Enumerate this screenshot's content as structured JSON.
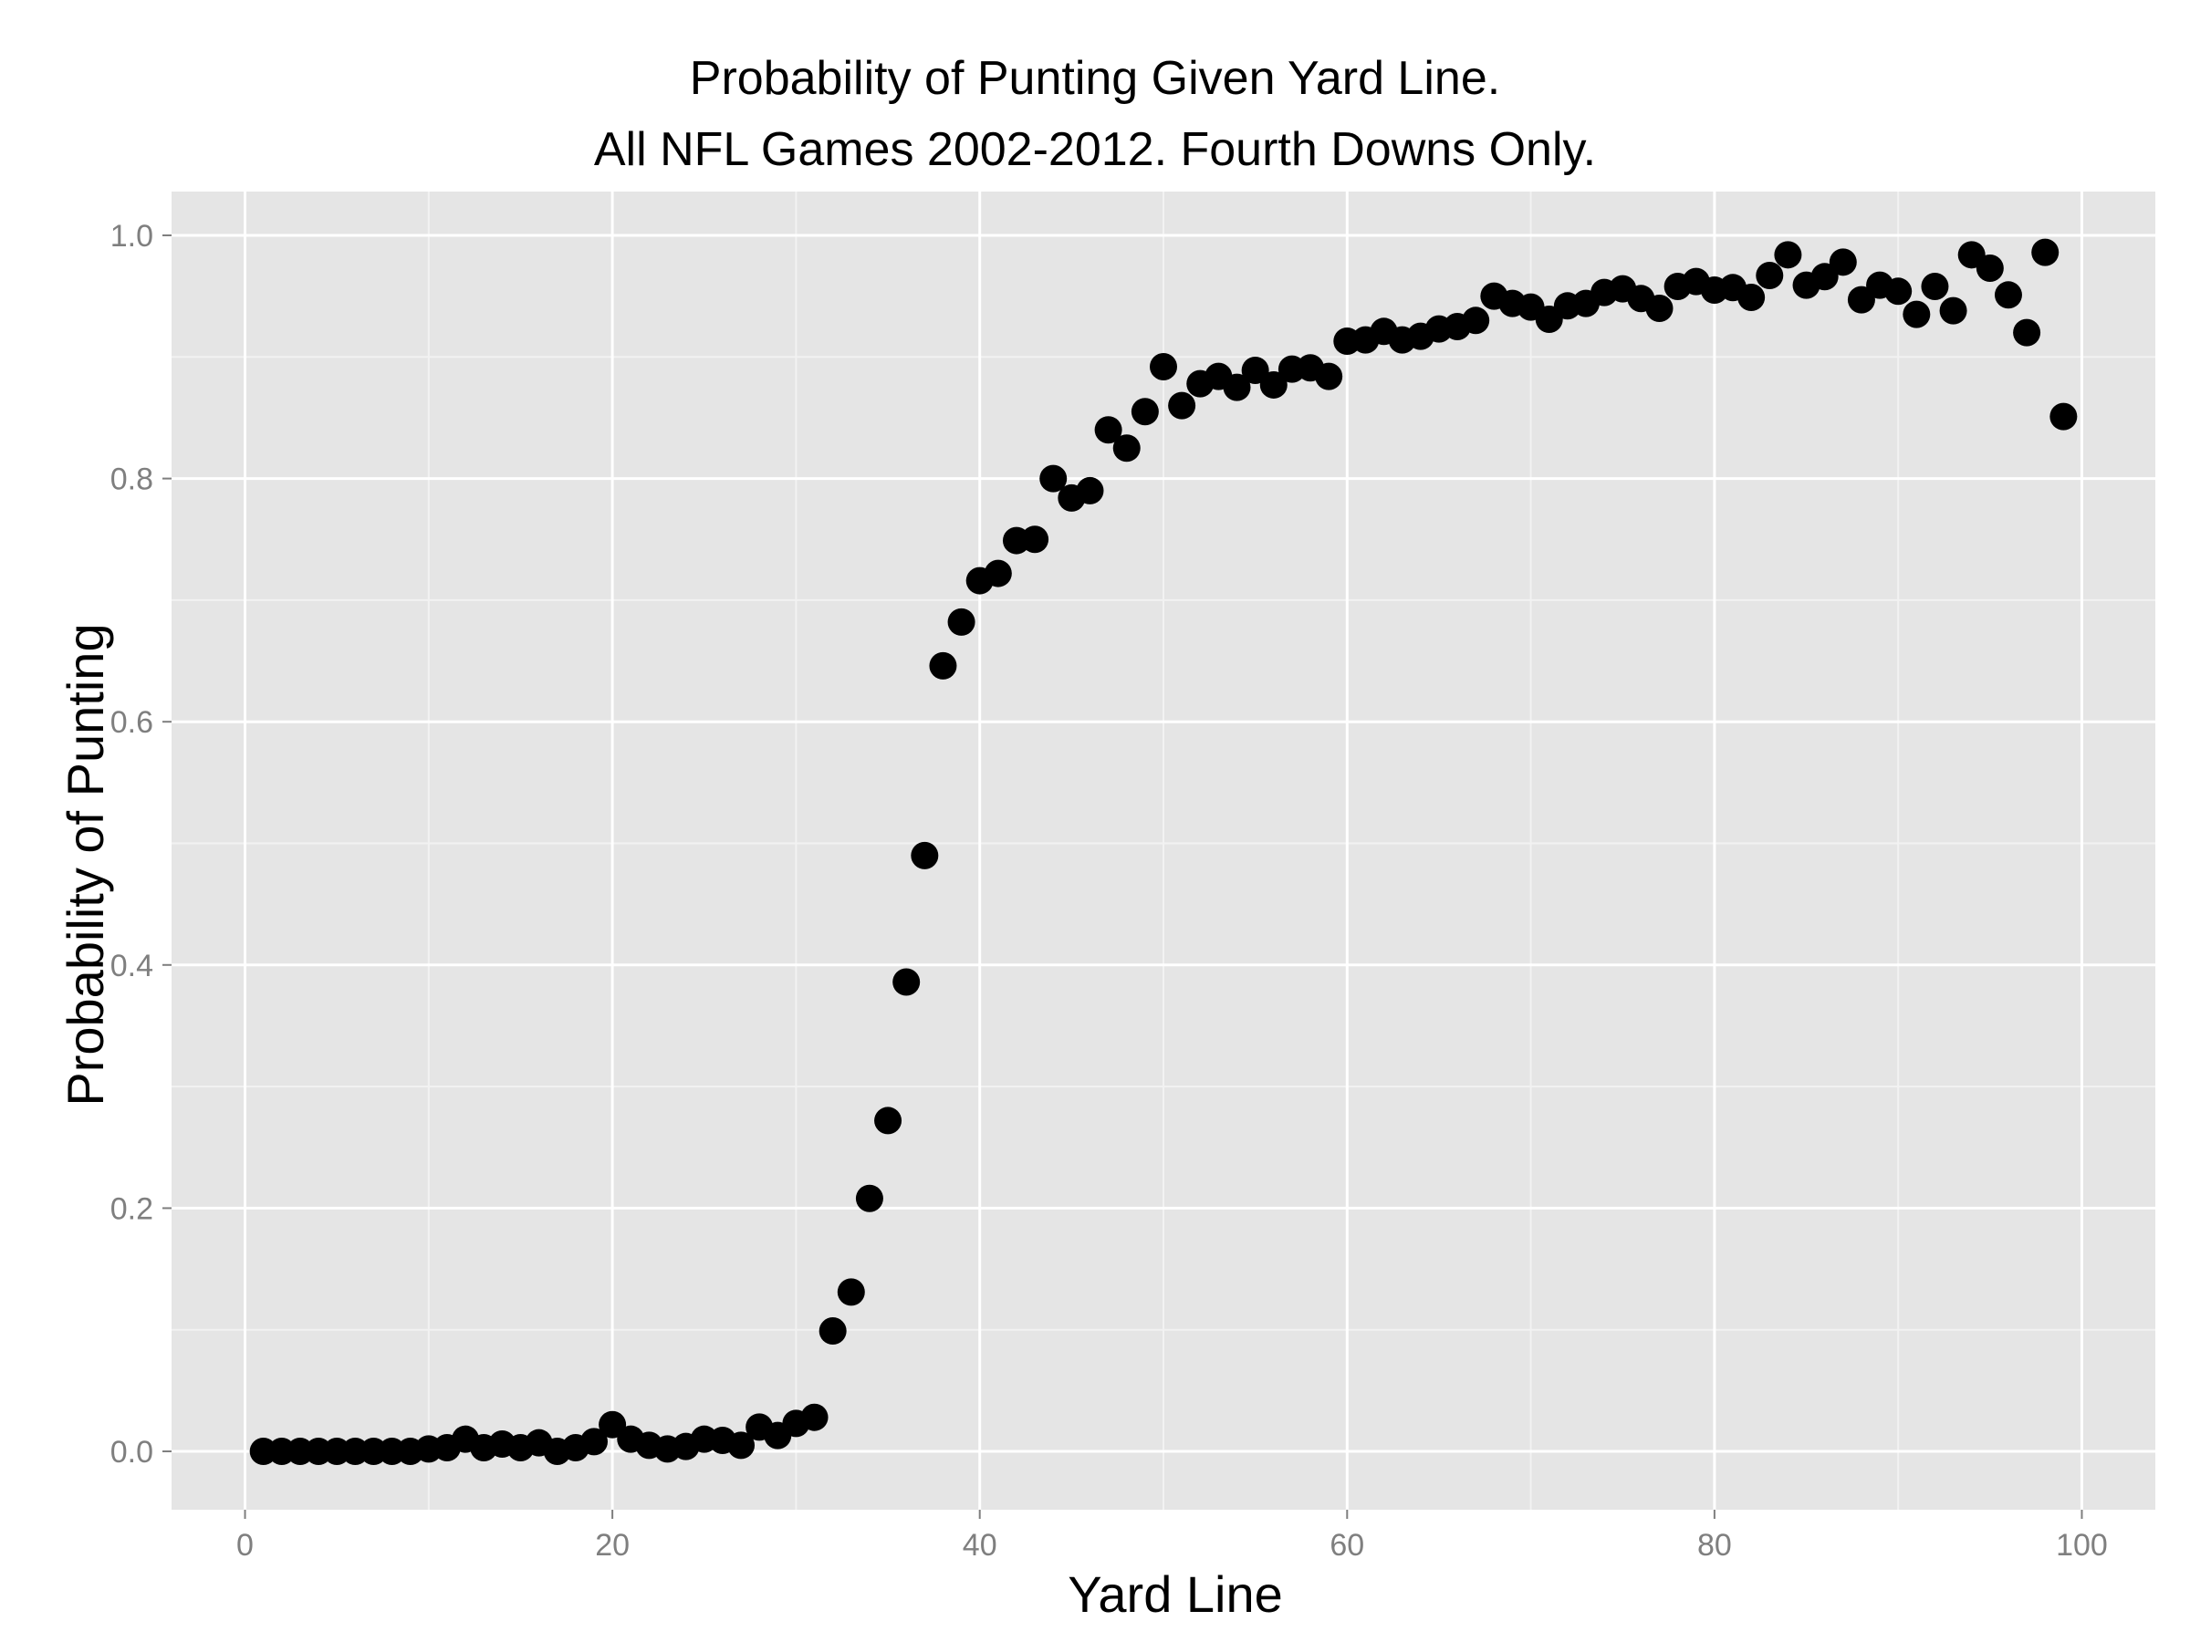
{
  "chart_data": {
    "type": "scatter",
    "title": "Probability of Punting Given Yard Line.",
    "subtitle": "All NFL Games 2002-2012. Fourth Downs Only.",
    "xlabel": "Yard Line",
    "ylabel": "Probability of Punting",
    "xlim": [
      -4,
      104
    ],
    "ylim": [
      -0.048,
      1.036
    ],
    "x_ticks": [
      0,
      20,
      40,
      60,
      80,
      100
    ],
    "x_tick_labels": [
      "0",
      "20",
      "40",
      "60",
      "80",
      "100"
    ],
    "y_ticks": [
      0.0,
      0.2,
      0.4,
      0.6,
      0.8,
      1.0
    ],
    "y_tick_labels": [
      "0.0",
      "0.2",
      "0.4",
      "0.6",
      "0.8",
      "1.0"
    ],
    "grid": true,
    "legend": "none",
    "colors": {
      "panel": "#E5E5E5",
      "grid_major": "#FFFFFF",
      "grid_minor": "#F2F2F2",
      "point": "#000000",
      "tick_label": "#7F7F7F"
    },
    "x": [
      1,
      2,
      3,
      4,
      5,
      6,
      7,
      8,
      9,
      10,
      11,
      12,
      13,
      14,
      15,
      16,
      17,
      18,
      19,
      20,
      21,
      22,
      23,
      24,
      25,
      26,
      27,
      28,
      29,
      30,
      31,
      32,
      33,
      34,
      35,
      36,
      37,
      38,
      39,
      40,
      41,
      42,
      43,
      44,
      45,
      46,
      47,
      48,
      49,
      50,
      51,
      52,
      53,
      54,
      55,
      56,
      57,
      58,
      59,
      60,
      61,
      62,
      63,
      64,
      65,
      66,
      67,
      68,
      69,
      70,
      71,
      72,
      73,
      74,
      75,
      76,
      77,
      78,
      79,
      80,
      81,
      82,
      83,
      84,
      85,
      86,
      87,
      88,
      89,
      90,
      91,
      92,
      93,
      94,
      95,
      96,
      97,
      98,
      99
    ],
    "y": [
      0.0,
      0.0,
      0.0,
      0.0,
      0.0,
      0.0,
      0.0,
      0.0,
      0.0,
      0.002,
      0.003,
      0.01,
      0.003,
      0.006,
      0.003,
      0.007,
      0.0,
      0.003,
      0.008,
      0.022,
      0.01,
      0.005,
      0.002,
      0.004,
      0.01,
      0.009,
      0.005,
      0.02,
      0.013,
      0.023,
      0.028,
      0.099,
      0.131,
      0.208,
      0.272,
      0.386,
      0.49,
      0.646,
      0.682,
      0.716,
      0.722,
      0.749,
      0.75,
      0.8,
      0.784,
      0.79,
      0.84,
      0.825,
      0.855,
      0.892,
      0.86,
      0.878,
      0.884,
      0.875,
      0.889,
      0.877,
      0.89,
      0.891,
      0.884,
      0.913,
      0.914,
      0.921,
      0.914,
      0.917,
      0.923,
      0.925,
      0.93,
      0.95,
      0.944,
      0.941,
      0.931,
      0.942,
      0.944,
      0.953,
      0.956,
      0.948,
      0.94,
      0.958,
      0.962,
      0.955,
      0.957,
      0.949,
      0.967,
      0.984,
      0.959,
      0.966,
      0.978,
      0.947,
      0.959,
      0.954,
      0.935,
      0.958,
      0.938,
      0.984,
      0.973,
      0.951,
      0.92,
      0.986,
      0.851
    ]
  }
}
